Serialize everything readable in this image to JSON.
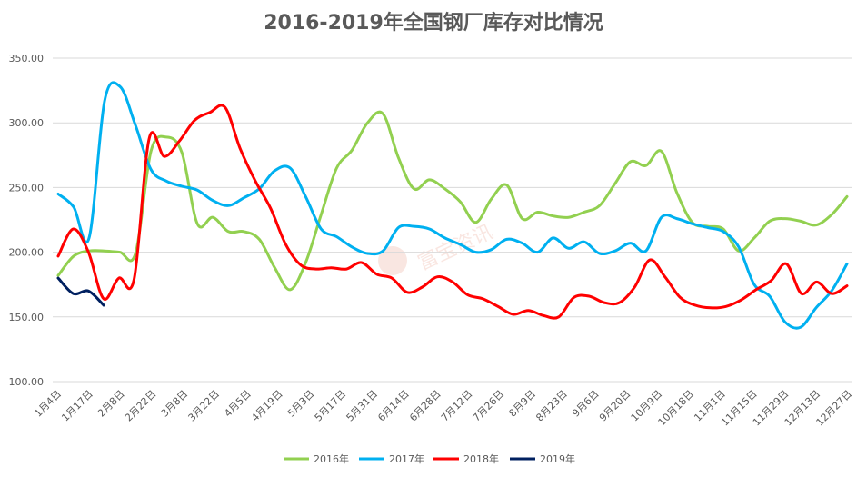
{
  "chart_data": {
    "type": "line",
    "title": "2016-2019年全国钢厂库存对比情况",
    "xlabel": "",
    "ylabel": "",
    "ylim": [
      100,
      350
    ],
    "yticks": [
      "100.00",
      "150.00",
      "200.00",
      "250.00",
      "300.00",
      "350.00"
    ],
    "ytick_values": [
      100,
      150,
      200,
      250,
      300,
      350
    ],
    "x_tick_labels": [
      "1月4日",
      "1月17日",
      "2月8日",
      "2月22日",
      "3月8日",
      "3月22日",
      "4月5日",
      "4月19日",
      "5月3日",
      "5月17日",
      "5月31日",
      "6月14日",
      "6月28日",
      "7月12日",
      "7月26日",
      "8月9日",
      "8月23日",
      "9月6日",
      "9月20日",
      "10月9日",
      "10月18日",
      "11月1日",
      "11月15日",
      "11月29日",
      "12月13日",
      "12月27日"
    ],
    "grid": true,
    "legend_position": "bottom",
    "watermark": "富宝资讯",
    "series": [
      {
        "name": "2016年",
        "color": "#92d050",
        "values": [
          182,
          197,
          201,
          201,
          200,
          199,
          278,
          289,
          277,
          222,
          227,
          216,
          216,
          210,
          188,
          171,
          192,
          229,
          265,
          279,
          300,
          307,
          273,
          249,
          256,
          249,
          239,
          223,
          241,
          252,
          226,
          231,
          228,
          227,
          231,
          236,
          253,
          270,
          267,
          278,
          246,
          223,
          220,
          218,
          201,
          211,
          224,
          226,
          224,
          221,
          229,
          243
        ]
      },
      {
        "name": "2017年",
        "color": "#00b0f0",
        "values": [
          245,
          235,
          211,
          317,
          328,
          298,
          264,
          255,
          251,
          248,
          240,
          236,
          242,
          249,
          263,
          265,
          243,
          218,
          212,
          204,
          199,
          201,
          219,
          220,
          218,
          211,
          206,
          200,
          202,
          210,
          207,
          200,
          211,
          203,
          208,
          199,
          201,
          207,
          201,
          227,
          226,
          222,
          219,
          216,
          204,
          175,
          166,
          146,
          142,
          157,
          170,
          191
        ]
      },
      {
        "name": "2018年",
        "color": "#ff0000",
        "values": [
          197,
          218,
          200,
          164,
          180,
          179,
          288,
          274,
          286,
          302,
          308,
          312,
          280,
          255,
          234,
          206,
          190,
          187,
          188,
          187,
          192,
          183,
          180,
          169,
          173,
          181,
          177,
          167,
          164,
          158,
          152,
          155,
          151,
          150,
          165,
          166,
          161,
          161,
          173,
          194,
          181,
          165,
          159,
          157,
          158,
          163,
          171,
          178,
          191,
          168,
          177,
          168,
          174
        ]
      },
      {
        "name": "2019年",
        "color": "#002060",
        "values": [
          180,
          168,
          170,
          159
        ]
      }
    ]
  }
}
